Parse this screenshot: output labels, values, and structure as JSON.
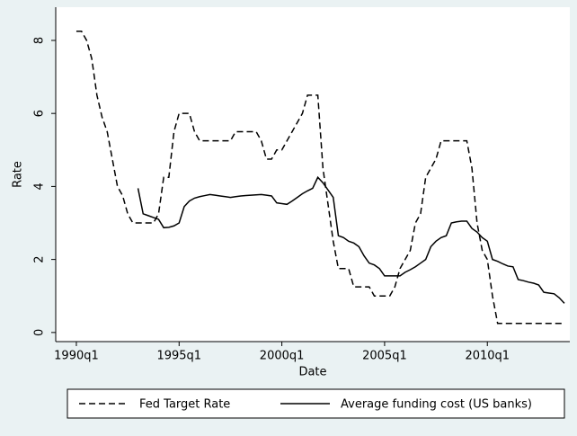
{
  "chart_data": {
    "type": "line",
    "x_label": "Date",
    "y_label": "Rate",
    "x": [
      1990,
      1990.25,
      1990.5,
      1990.75,
      1991,
      1991.25,
      1991.5,
      1991.75,
      1992,
      1992.25,
      1992.5,
      1992.75,
      1993,
      1993.25,
      1993.5,
      1993.75,
      1994,
      1994.25,
      1994.5,
      1994.75,
      1995,
      1995.25,
      1995.5,
      1995.75,
      1996,
      1996.25,
      1996.5,
      1996.75,
      1997,
      1997.25,
      1997.5,
      1997.75,
      1998,
      1998.25,
      1998.5,
      1998.75,
      1999,
      1999.25,
      1999.5,
      1999.75,
      2000,
      2000.25,
      2000.5,
      2000.75,
      2001,
      2001.25,
      2001.5,
      2001.75,
      2002,
      2002.25,
      2002.5,
      2002.75,
      2003,
      2003.25,
      2003.5,
      2003.75,
      2004,
      2004.25,
      2004.5,
      2004.75,
      2005,
      2005.25,
      2005.5,
      2005.75,
      2006,
      2006.25,
      2006.5,
      2006.75,
      2007,
      2007.25,
      2007.5,
      2007.75,
      2008,
      2008.25,
      2008.5,
      2008.75,
      2009,
      2009.25,
      2009.5,
      2009.75,
      2010,
      2010.25,
      2010.5,
      2010.75,
      2011,
      2011.25,
      2011.5,
      2011.75,
      2012,
      2012.25,
      2012.5,
      2012.75,
      2013,
      2013.25,
      2013.5,
      2013.75
    ],
    "series": [
      {
        "name": "Fed Target Rate",
        "color": "#000000",
        "dash": true,
        "values": [
          8.25,
          8.25,
          8.0,
          7.5,
          6.5,
          5.9,
          5.5,
          4.75,
          4.0,
          3.75,
          3.25,
          3.0,
          3.0,
          3.0,
          3.0,
          3.0,
          3.25,
          4.25,
          4.25,
          5.5,
          6.0,
          6.0,
          6.0,
          5.5,
          5.25,
          5.25,
          5.25,
          5.25,
          5.25,
          5.25,
          5.25,
          5.5,
          5.5,
          5.5,
          5.5,
          5.5,
          5.25,
          4.75,
          4.75,
          5.0,
          5.0,
          5.25,
          5.5,
          5.75,
          6.0,
          6.5,
          6.5,
          6.5,
          4.5,
          3.5,
          2.5,
          1.75,
          1.75,
          1.75,
          1.25,
          1.25,
          1.25,
          1.25,
          1.0,
          1.0,
          1.0,
          1.0,
          1.25,
          1.75,
          2.0,
          2.25,
          3.0,
          3.25,
          4.25,
          4.5,
          4.75,
          5.25,
          5.25,
          5.25,
          5.25,
          5.25,
          5.25,
          4.5,
          3.0,
          2.25,
          2.0,
          1.0,
          0.25,
          0.25,
          0.25,
          0.25,
          0.25,
          0.25,
          0.25,
          0.25,
          0.25,
          0.25,
          0.25,
          0.25,
          0.25,
          0.25
        ]
      },
      {
        "name": "Average funding cost (US banks)",
        "color": "#000000",
        "dash": false,
        "values": [
          null,
          null,
          null,
          null,
          null,
          null,
          null,
          null,
          null,
          null,
          null,
          null,
          3.95,
          3.25,
          3.2,
          3.15,
          3.1,
          2.87,
          2.88,
          2.92,
          3.0,
          3.45,
          3.6,
          3.68,
          3.72,
          3.75,
          3.78,
          3.76,
          3.74,
          3.72,
          3.7,
          3.72,
          3.74,
          3.75,
          3.76,
          3.77,
          3.78,
          3.76,
          3.74,
          3.55,
          3.53,
          3.51,
          3.6,
          3.7,
          3.8,
          3.88,
          3.95,
          4.25,
          4.1,
          3.9,
          3.7,
          2.65,
          2.6,
          2.5,
          2.45,
          2.35,
          2.1,
          1.9,
          1.85,
          1.75,
          1.55,
          1.55,
          1.55,
          1.55,
          1.65,
          1.72,
          1.8,
          1.9,
          2.0,
          2.35,
          2.5,
          2.6,
          2.65,
          3.0,
          3.03,
          3.05,
          3.05,
          2.85,
          2.75,
          2.6,
          2.5,
          2.0,
          1.95,
          1.88,
          1.82,
          1.8,
          1.45,
          1.42,
          1.38,
          1.35,
          1.3,
          1.1,
          1.08,
          1.06,
          0.95,
          0.8
        ]
      }
    ],
    "xlim": [
      1989,
      2014
    ],
    "xticks": [
      {
        "value": 1990,
        "label": "1990q1"
      },
      {
        "value": 1995,
        "label": "1995q1"
      },
      {
        "value": 2000,
        "label": "2000q1"
      },
      {
        "value": 2005,
        "label": "2005q1"
      },
      {
        "value": 2010,
        "label": "2010q1"
      }
    ],
    "ylim": [
      -0.25,
      8.9
    ],
    "yticks": [
      0,
      2,
      4,
      6,
      8
    ],
    "grid": false,
    "legend": "bottom"
  }
}
